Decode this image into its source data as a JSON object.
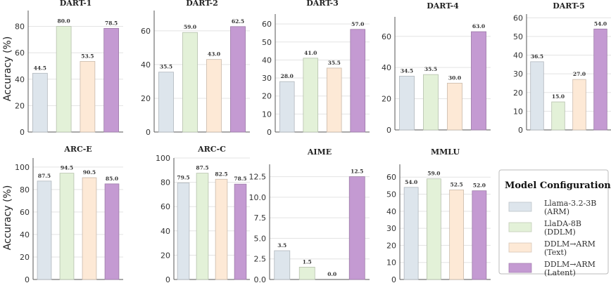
{
  "colors": {
    "Llama-3.2-3B (ARM)": "#dde5ec",
    "LlaDA-8B (DDLM)": "#e3f1d8",
    "DDLM→ARM (Text)": "#fde9d6",
    "DDLM→ARM (Latent)": "#c49ad2"
  },
  "row_labels": {
    "top": "Accuracy (%)",
    "bottom": "Accuracy (%)"
  },
  "legend": {
    "title": "Model Configurations",
    "items": [
      {
        "line1": "Llama-3.2-3B",
        "line2": "(ARM)"
      },
      {
        "line1": "LlaDA-8B",
        "line2": "(DDLM)"
      },
      {
        "line1": "DDLM→ARM",
        "line2": "(Text)"
      },
      {
        "line1": "DDLM→ARM",
        "line2": "(Latent)"
      }
    ]
  },
  "chart_data": [
    {
      "type": "bar",
      "title": "DART-1",
      "categories": [
        "Llama-3.2-3B (ARM)",
        "LlaDA-8B (DDLM)",
        "DDLM→ARM (Text)",
        "DDLM→ARM (Latent)"
      ],
      "values": [
        44.5,
        80.0,
        53.5,
        78.5
      ],
      "labels": [
        "44.5",
        "80.0",
        "53.5",
        "78.5"
      ],
      "ylim": [
        0,
        92
      ],
      "yticks": [
        "0",
        "20",
        "40",
        "60",
        "80"
      ],
      "ytick_values": [
        0,
        20,
        40,
        60,
        80
      ],
      "ylabel": "Accuracy (%)",
      "grid": true
    },
    {
      "type": "bar",
      "title": "DART-2",
      "categories": [
        "Llama-3.2-3B (ARM)",
        "LlaDA-8B (DDLM)",
        "DDLM→ARM (Text)",
        "DDLM→ARM (Latent)"
      ],
      "values": [
        35.5,
        59.0,
        43.0,
        62.5
      ],
      "labels": [
        "35.5",
        "59.0",
        "43.0",
        "62.5"
      ],
      "ylim": [
        0,
        72
      ],
      "yticks": [
        "0",
        "20",
        "40",
        "60"
      ],
      "ytick_values": [
        0,
        20,
        40,
        60
      ],
      "ylabel": "",
      "grid": true
    },
    {
      "type": "bar",
      "title": "DART-3",
      "categories": [
        "Llama-3.2-3B (ARM)",
        "LlaDA-8B (DDLM)",
        "DDLM→ARM (Text)",
        "DDLM→ARM (Latent)"
      ],
      "values": [
        28.0,
        41.0,
        35.5,
        57.0
      ],
      "labels": [
        "28.0",
        "41.0",
        "35.5",
        "57.0"
      ],
      "ylim": [
        0,
        65.5
      ],
      "yticks": [
        "0",
        "10",
        "20",
        "30",
        "40",
        "50",
        "60"
      ],
      "ytick_values": [
        0,
        10,
        20,
        30,
        40,
        50,
        60
      ],
      "ylabel": "",
      "grid": true
    },
    {
      "type": "bar",
      "title": "DART-4",
      "categories": [
        "Llama-3.2-3B (ARM)",
        "LlaDA-8B (DDLM)",
        "DDLM→ARM (Text)",
        "DDLM→ARM (Latent)"
      ],
      "values": [
        34.5,
        35.5,
        30.0,
        63.0
      ],
      "labels": [
        "34.5",
        "35.5",
        "30.0",
        "63.0"
      ],
      "ylim": [
        0,
        72.5
      ],
      "yticks": [
        "0",
        "20",
        "40",
        "60"
      ],
      "ytick_values": [
        0,
        20,
        40,
        60
      ],
      "ylabel": "",
      "grid": true
    },
    {
      "type": "bar",
      "title": "DART-5",
      "categories": [
        "Llama-3.2-3B (ARM)",
        "LlaDA-8B (DDLM)",
        "DDLM→ARM (Text)",
        "DDLM→ARM (Latent)"
      ],
      "values": [
        36.5,
        15.0,
        27.0,
        54.0
      ],
      "labels": [
        "36.5",
        "15.0",
        "27.0",
        "54.0"
      ],
      "ylim": [
        0,
        62
      ],
      "yticks": [
        "0",
        "10",
        "20",
        "30",
        "40",
        "50",
        "60"
      ],
      "ytick_values": [
        0,
        10,
        20,
        30,
        40,
        50,
        60
      ],
      "ylabel": "",
      "grid": true
    },
    {
      "type": "bar",
      "title": "ARC-E",
      "categories": [
        "Llama-3.2-3B (ARM)",
        "LlaDA-8B (DDLM)",
        "DDLM→ARM (Text)",
        "DDLM→ARM (Latent)"
      ],
      "values": [
        87.5,
        94.5,
        90.5,
        85.0
      ],
      "labels": [
        "87.5",
        "94.5",
        "90.5",
        "85.0"
      ],
      "ylim": [
        0,
        108
      ],
      "yticks": [
        "0",
        "20",
        "40",
        "60",
        "80",
        "100"
      ],
      "ytick_values": [
        0,
        20,
        40,
        60,
        80,
        100
      ],
      "ylabel": "Accuracy (%)",
      "grid": true
    },
    {
      "type": "bar",
      "title": "ARC-C",
      "categories": [
        "Llama-3.2-3B (ARM)",
        "LlaDA-8B (DDLM)",
        "DDLM→ARM (Text)",
        "DDLM→ARM (Latent)"
      ],
      "values": [
        79.5,
        87.5,
        82.5,
        78.5
      ],
      "labels": [
        "79.5",
        "87.5",
        "82.5",
        "78.5"
      ],
      "ylim": [
        0,
        100
      ],
      "yticks": [
        "0",
        "20",
        "40",
        "60",
        "80",
        "100"
      ],
      "ytick_values": [
        0,
        20,
        40,
        60,
        80,
        100
      ],
      "ylabel": "",
      "grid": true
    },
    {
      "type": "bar",
      "title": "AIME",
      "categories": [
        "Llama-3.2-3B (ARM)",
        "LlaDA-8B (DDLM)",
        "DDLM→ARM (Text)",
        "DDLM→ARM (Latent)"
      ],
      "values": [
        3.5,
        1.5,
        0.0,
        12.5
      ],
      "labels": [
        "3.5",
        "1.5",
        "0.0",
        "12.5"
      ],
      "ylim": [
        0,
        14
      ],
      "yticks": [
        "0.0",
        "2.5",
        "5.0",
        "7.5",
        "10.0",
        "12.5"
      ],
      "ytick_values": [
        0,
        2.5,
        5,
        7.5,
        10,
        12.5
      ],
      "ylabel": "",
      "grid": true
    },
    {
      "type": "bar",
      "title": "MMLU",
      "categories": [
        "Llama-3.2-3B (ARM)",
        "LlaDA-8B (DDLM)",
        "DDLM→ARM (Text)",
        "DDLM→ARM (Latent)"
      ],
      "values": [
        54.0,
        59.0,
        52.5,
        52.0
      ],
      "labels": [
        "54.0",
        "59.0",
        "52.5",
        "52.0"
      ],
      "ylim": [
        0,
        67.5
      ],
      "yticks": [
        "0",
        "10",
        "20",
        "30",
        "40",
        "50",
        "60"
      ],
      "ytick_values": [
        0,
        10,
        20,
        30,
        40,
        50,
        60
      ],
      "ylabel": "",
      "grid": true
    }
  ]
}
